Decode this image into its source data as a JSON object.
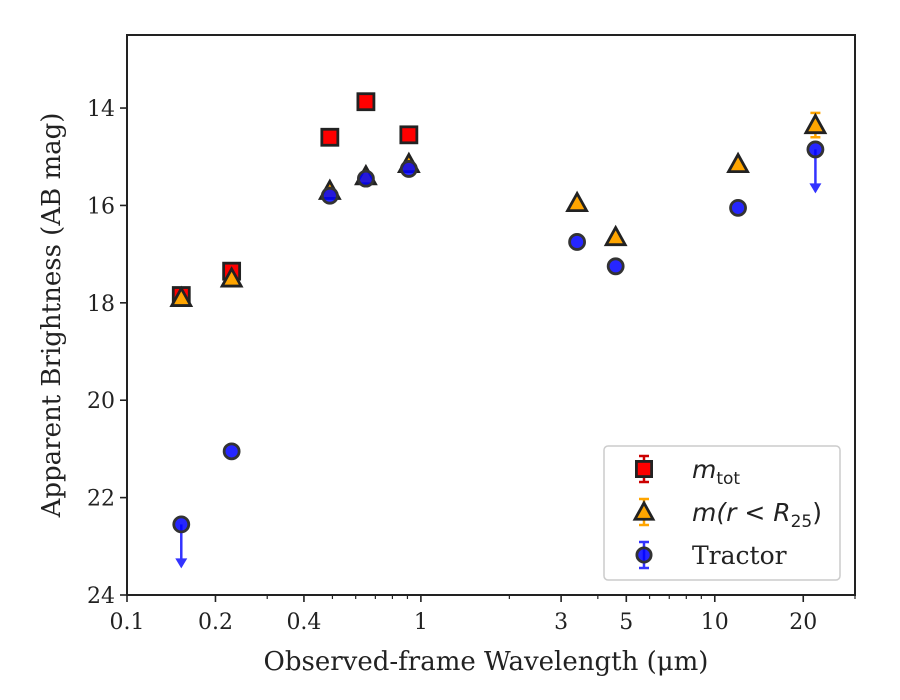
{
  "chart_data": {
    "type": "scatter",
    "xlabel": "Observed-frame Wavelength (μm)",
    "ylabel": "Apparent Brightness (AB mag)",
    "x_scale": "log",
    "xlim": [
      0.1,
      30
    ],
    "ylim": [
      24,
      12.5
    ],
    "y_inverted": true,
    "x_ticks": [
      0.1,
      0.2,
      0.4,
      1,
      3,
      5,
      10,
      20
    ],
    "x_tick_labels": [
      "0.1",
      "0.2",
      "0.4",
      "1",
      "3",
      "5",
      "10",
      "20"
    ],
    "y_ticks": [
      14,
      16,
      18,
      20,
      22,
      24
    ],
    "y_tick_labels": [
      "14",
      "16",
      "18",
      "20",
      "22",
      "24"
    ],
    "legend_position": "lower-right",
    "grid": false,
    "series": [
      {
        "name": "m_tot",
        "legend_main": "m",
        "legend_sub": "tot",
        "marker": "square",
        "face_color": "#ff0000",
        "edge_color": "#222222",
        "error_color": "#cc0000",
        "points": [
          {
            "x": 0.153,
            "y": 17.85
          },
          {
            "x": 0.227,
            "y": 17.35
          },
          {
            "x": 0.49,
            "y": 14.6
          },
          {
            "x": 0.65,
            "y": 13.87
          },
          {
            "x": 0.91,
            "y": 14.55
          }
        ]
      },
      {
        "name": "m(r < R25)",
        "legend_main": "m(r < R",
        "legend_sub": "25",
        "legend_tail": ")",
        "marker": "triangle",
        "face_color": "#ffa500",
        "edge_color": "#222222",
        "error_color": "#ffa500",
        "points": [
          {
            "x": 0.153,
            "y": 17.9
          },
          {
            "x": 0.227,
            "y": 17.5
          },
          {
            "x": 0.49,
            "y": 15.7
          },
          {
            "x": 0.65,
            "y": 15.4
          },
          {
            "x": 0.91,
            "y": 15.15
          },
          {
            "x": 3.4,
            "y": 15.95
          },
          {
            "x": 4.6,
            "y": 16.65
          },
          {
            "x": 12.0,
            "y": 15.15
          },
          {
            "x": 22.0,
            "y": 14.35,
            "err": 0.25
          }
        ]
      },
      {
        "name": "Tractor",
        "marker": "circle",
        "face_color": "#0000ff",
        "edge_color": "#333333",
        "error_color": "#3333ff",
        "points": [
          {
            "x": 0.153,
            "y": 22.55,
            "upper_limit": true
          },
          {
            "x": 0.227,
            "y": 21.05
          },
          {
            "x": 0.49,
            "y": 15.8
          },
          {
            "x": 0.65,
            "y": 15.45
          },
          {
            "x": 0.91,
            "y": 15.25
          },
          {
            "x": 3.4,
            "y": 16.75
          },
          {
            "x": 4.6,
            "y": 17.25
          },
          {
            "x": 12.0,
            "y": 16.05
          },
          {
            "x": 22.0,
            "y": 14.85,
            "upper_limit": true
          }
        ]
      }
    ]
  }
}
